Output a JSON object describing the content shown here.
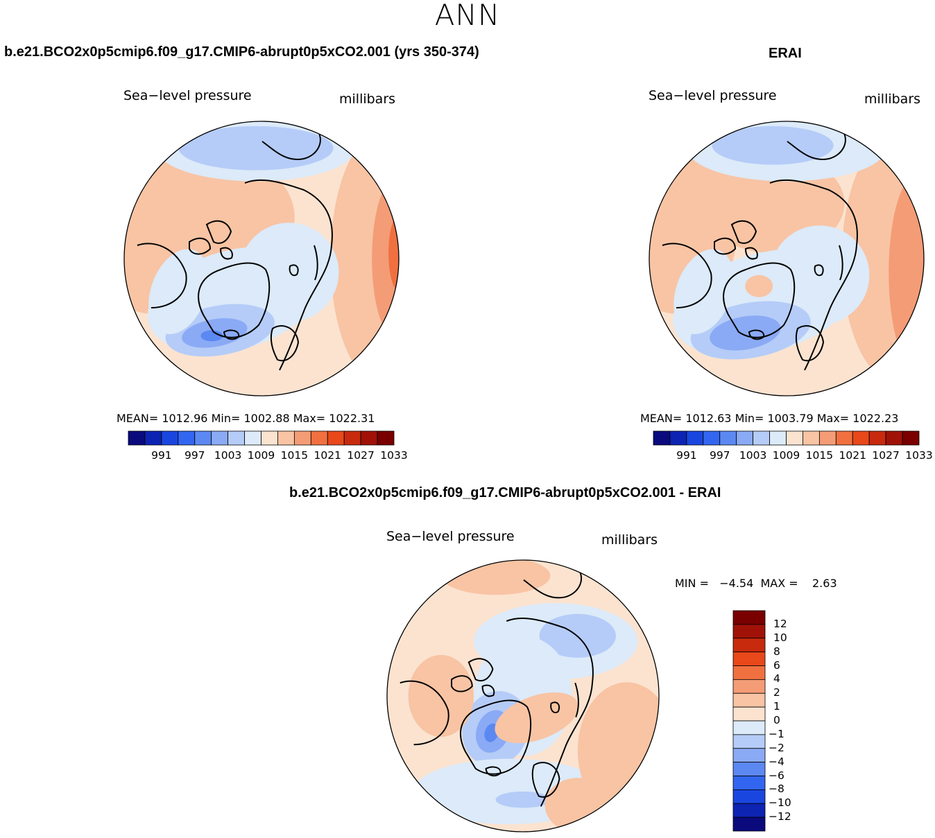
{
  "figure": {
    "season": "ANN",
    "diff_title": "b.e21.BCO2x0p5cmip6.f09_g17.CMIP6-abrupt0p5xCO2.001 - ERAI",
    "diff_min_max": "MIN =   −4.54  MAX =    2.63"
  },
  "panels": [
    {
      "title": "b.e21.BCO2x0p5cmip6.f09_g17.CMIP6-abrupt0p5xCO2.001 (yrs 350-374)",
      "variable": "Sea−level pressure",
      "units": "millibars",
      "stats": "MEAN=  1012.96    Min=  1002.88    Max=  1022.31"
    },
    {
      "title": "ERAI",
      "variable": "Sea−level pressure",
      "units": "millibars",
      "stats": "MEAN=  1012.63    Min=  1003.79    Max=  1022.23"
    },
    {
      "title": "",
      "variable": "Sea−level pressure",
      "units": "millibars",
      "stats": ""
    }
  ],
  "colorbars": {
    "abs_ticks": [
      "991",
      "997",
      "1003",
      "1009",
      "1015",
      "1021",
      "1027",
      "1033"
    ],
    "abs_colors": [
      "#0a0a7d",
      "#0d24b3",
      "#1a46e0",
      "#3366f0",
      "#5c88f2",
      "#8aaaf5",
      "#b5ccf8",
      "#dceaf9",
      "#fbe3d0",
      "#f8c4a4",
      "#f49c76",
      "#f07040",
      "#e8481a",
      "#c82a0e",
      "#a01208",
      "#7a0000"
    ],
    "diff_ticks": [
      "12",
      "10",
      "8",
      "6",
      "4",
      "2",
      "1",
      "0",
      "−1",
      "−2",
      "−4",
      "−6",
      "−8",
      "−10",
      "−12"
    ],
    "diff_colors": [
      "#7a0000",
      "#a01208",
      "#c82a0e",
      "#e8481a",
      "#f07040",
      "#f49c76",
      "#f8c4a4",
      "#fbe3d0",
      "#dceaf9",
      "#b5ccf8",
      "#8aaaf5",
      "#5c88f2",
      "#3366f0",
      "#1a46e0",
      "#0d24b3",
      "#0a0a7d"
    ]
  },
  "maps": {
    "projection": "north-polar-stereographic",
    "field": "sea-level-pressure"
  }
}
